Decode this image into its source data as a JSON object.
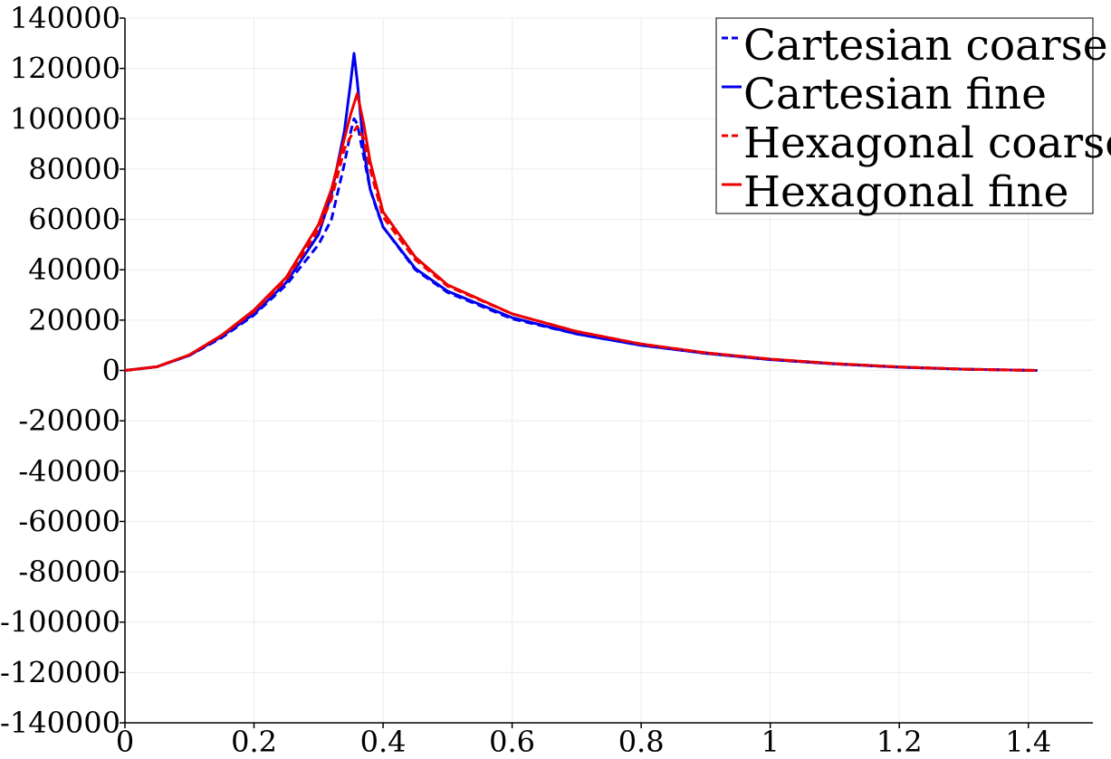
{
  "chart_data": {
    "type": "line",
    "title": "",
    "xlabel": "",
    "ylabel": "",
    "xlim": [
      0,
      1.5
    ],
    "ylim": [
      -140000,
      140000
    ],
    "grid": true,
    "legend_position": "top-right",
    "x_ticks": [
      0,
      0.2,
      0.4,
      0.6,
      0.8,
      1,
      1.2,
      1.4
    ],
    "x_tick_labels": [
      "0",
      "0.2",
      "0.4",
      "0.6",
      "0.8",
      "1",
      "1.2",
      "1.4"
    ],
    "y_ticks": [
      -140000,
      -120000,
      -100000,
      -80000,
      -60000,
      -40000,
      -20000,
      0,
      20000,
      40000,
      60000,
      80000,
      100000,
      120000,
      140000
    ],
    "y_tick_labels": [
      "-140000",
      "-120000",
      "-100000",
      "-80000",
      "-60000",
      "-40000",
      "-20000",
      "0",
      "20000",
      "40000",
      "60000",
      "80000",
      "100000",
      "120000",
      "140000"
    ],
    "series": [
      {
        "name": "Cartesian coarse",
        "color": "#0000ee",
        "style": "dashed",
        "x": [
          0,
          0.05,
          0.1,
          0.15,
          0.2,
          0.25,
          0.3,
          0.32,
          0.34,
          0.35,
          0.355,
          0.36,
          0.37,
          0.38,
          0.39,
          0.4,
          0.45,
          0.5,
          0.6,
          0.7,
          0.8,
          0.9,
          1.0,
          1.1,
          1.2,
          1.3,
          1.414
        ],
        "y": [
          0,
          1500,
          6000,
          13000,
          22000,
          34000,
          50000,
          60000,
          82000,
          95000,
          100000,
          98000,
          85000,
          72000,
          64000,
          57000,
          40000,
          31000,
          20500,
          14500,
          10000,
          6800,
          4300,
          2600,
          1300,
          500,
          0
        ]
      },
      {
        "name": "Cartesian fine",
        "color": "#0000ee",
        "style": "solid",
        "x": [
          0,
          0.05,
          0.1,
          0.15,
          0.2,
          0.25,
          0.3,
          0.32,
          0.34,
          0.35,
          0.355,
          0.36,
          0.37,
          0.38,
          0.4,
          0.45,
          0.5,
          0.6,
          0.7,
          0.8,
          0.9,
          1.0,
          1.1,
          1.2,
          1.3,
          1.414
        ],
        "y": [
          0,
          1500,
          6000,
          13500,
          22500,
          35000,
          54000,
          70000,
          95000,
          115000,
          126000,
          115000,
          88000,
          72000,
          57000,
          40500,
          31500,
          21000,
          14500,
          10000,
          6800,
          4300,
          2600,
          1300,
          500,
          0
        ]
      },
      {
        "name": "Hexagonal coarse",
        "color": "#ee0000",
        "style": "dashed",
        "x": [
          0,
          0.05,
          0.1,
          0.15,
          0.2,
          0.25,
          0.3,
          0.32,
          0.34,
          0.35,
          0.36,
          0.37,
          0.38,
          0.4,
          0.45,
          0.5,
          0.6,
          0.7,
          0.8,
          0.9,
          1.0,
          1.1,
          1.2,
          1.3,
          1.414
        ],
        "y": [
          0,
          1500,
          6200,
          14000,
          23500,
          36000,
          56000,
          68000,
          88000,
          93000,
          97000,
          92000,
          80000,
          61000,
          44000,
          33500,
          22500,
          15500,
          10500,
          7000,
          4500,
          2700,
          1400,
          500,
          0
        ]
      },
      {
        "name": "Hexagonal fine",
        "color": "#ee0000",
        "style": "solid",
        "x": [
          0,
          0.05,
          0.1,
          0.15,
          0.2,
          0.25,
          0.3,
          0.32,
          0.34,
          0.35,
          0.36,
          0.37,
          0.38,
          0.4,
          0.45,
          0.5,
          0.6,
          0.7,
          0.8,
          0.9,
          1.0,
          1.1,
          1.2,
          1.3,
          1.414
        ],
        "y": [
          0,
          1500,
          6200,
          14000,
          24000,
          37000,
          58000,
          72000,
          92000,
          102000,
          110000,
          98000,
          83000,
          63000,
          45000,
          34000,
          22500,
          15500,
          10500,
          7000,
          4500,
          2700,
          1400,
          500,
          0
        ]
      }
    ]
  }
}
